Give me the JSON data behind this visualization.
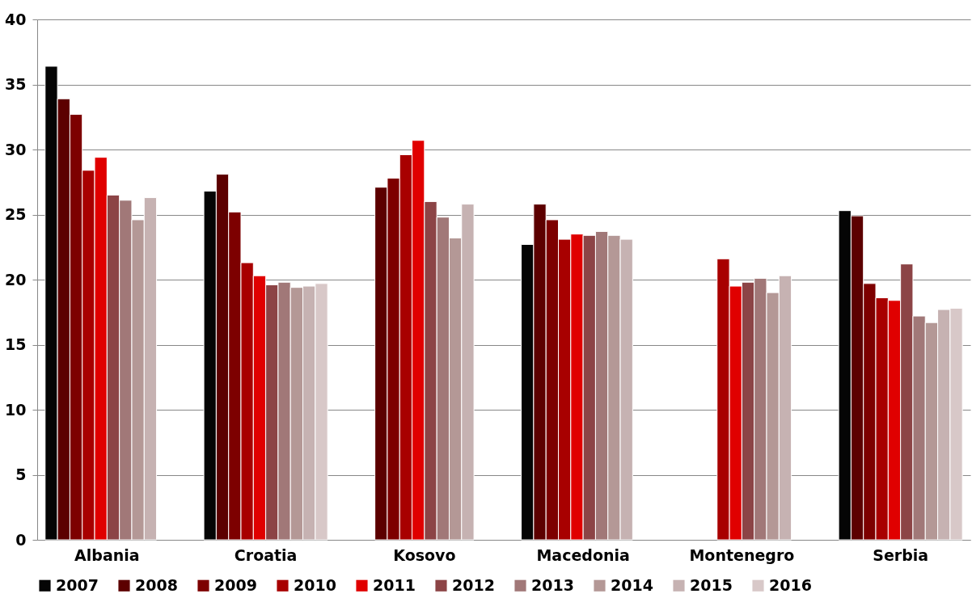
{
  "chart_data": {
    "type": "bar",
    "categories": [
      "Albania",
      "Croatia",
      "Kosovo",
      "Macedonia",
      "Montenegro",
      "Serbia"
    ],
    "series": [
      {
        "name": "2007",
        "color": "#050505",
        "values": [
          36.4,
          26.8,
          null,
          22.7,
          null,
          25.3
        ]
      },
      {
        "name": "2008",
        "color": "#5c0000",
        "values": [
          33.9,
          28.1,
          27.1,
          25.8,
          null,
          24.9
        ]
      },
      {
        "name": "2009",
        "color": "#7d0000",
        "values": [
          32.7,
          25.2,
          27.8,
          24.6,
          null,
          19.7
        ]
      },
      {
        "name": "2010",
        "color": "#a80000",
        "values": [
          28.4,
          21.3,
          29.6,
          23.1,
          21.6,
          18.6
        ]
      },
      {
        "name": "2011",
        "color": "#e00000",
        "values": [
          29.4,
          20.3,
          30.7,
          23.5,
          19.5,
          18.4
        ]
      },
      {
        "name": "2012",
        "color": "#8c4446",
        "values": [
          26.5,
          19.6,
          26.0,
          23.4,
          19.8,
          21.2
        ]
      },
      {
        "name": "2013",
        "color": "#a17878",
        "values": [
          26.1,
          19.8,
          24.8,
          23.7,
          20.1,
          17.2
        ]
      },
      {
        "name": "2014",
        "color": "#b49896",
        "values": [
          24.6,
          19.4,
          23.2,
          23.4,
          19.0,
          16.7
        ]
      },
      {
        "name": "2015",
        "color": "#c6b2b2",
        "values": [
          26.3,
          19.5,
          25.8,
          23.1,
          20.3,
          17.7
        ]
      },
      {
        "name": "2016",
        "color": "#d8c8c8",
        "values": [
          null,
          19.7,
          null,
          null,
          null,
          17.8
        ]
      }
    ],
    "ylim": [
      0,
      40
    ],
    "yticks": [
      0,
      5,
      10,
      15,
      20,
      25,
      30,
      35,
      40
    ],
    "grid": "y",
    "legend": "bottom"
  }
}
